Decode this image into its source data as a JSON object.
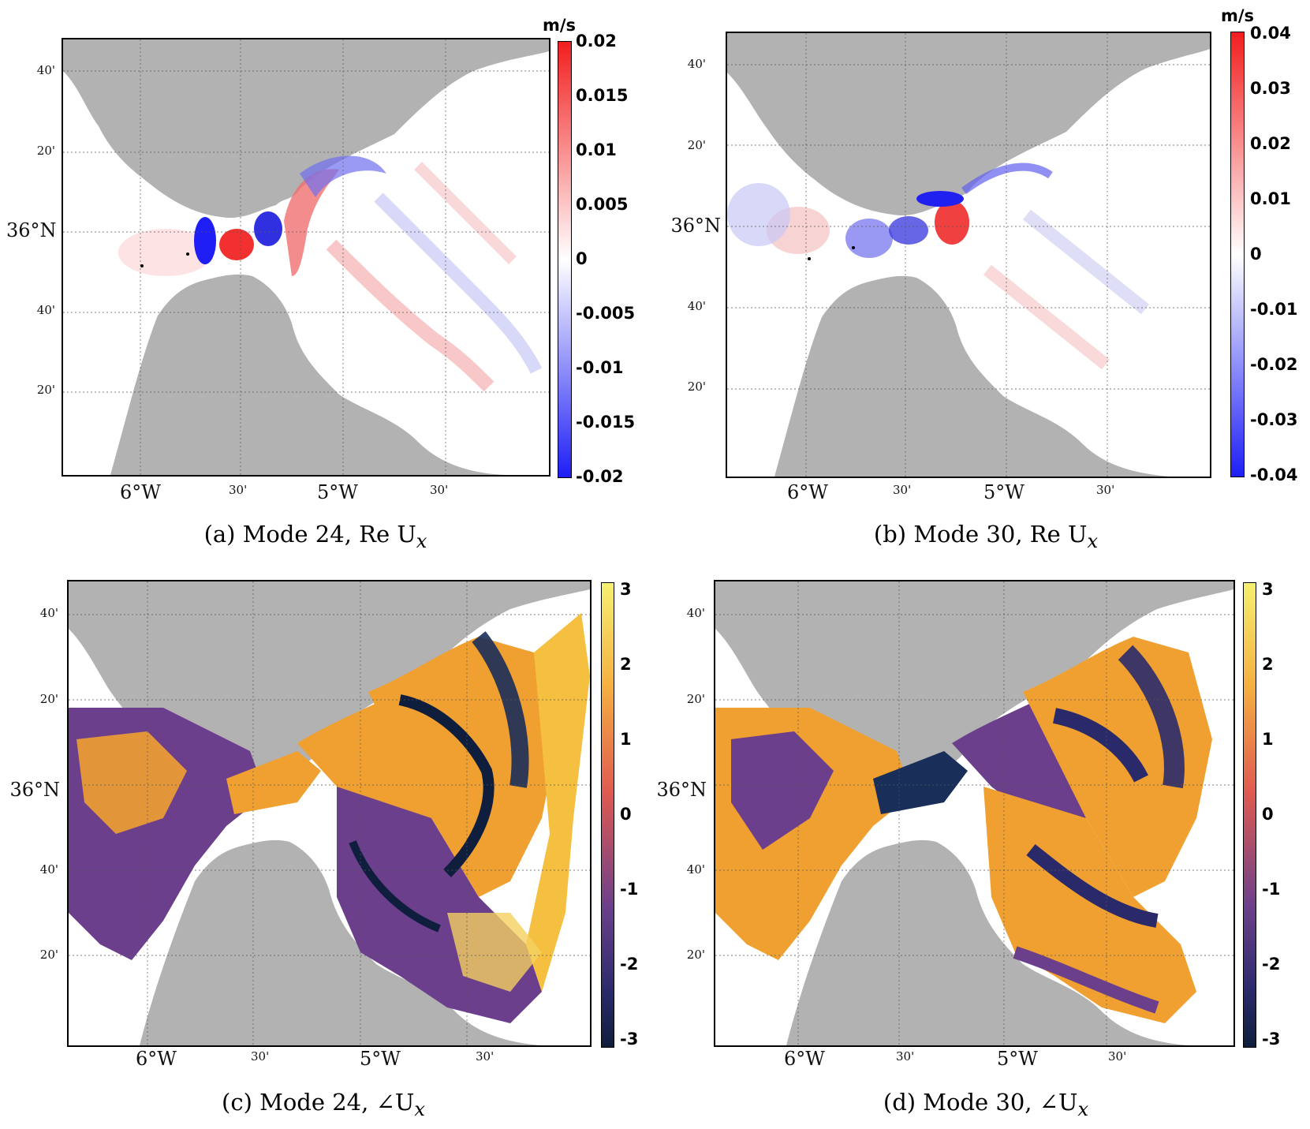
{
  "panels": [
    {
      "id": "a",
      "caption": "(a) Mode 24, Re U",
      "caption_sub": "x",
      "unit": "m/s",
      "colorbar": "diverging",
      "ticks": [
        "0.02",
        "0.015",
        "0.01",
        "0.005",
        "0",
        "-0.005",
        "-0.01",
        "-0.015",
        "-0.02"
      ]
    },
    {
      "id": "b",
      "caption": "(b) Mode 30, Re U",
      "caption_sub": "x",
      "unit": "m/s",
      "colorbar": "diverging",
      "ticks": [
        "0.04",
        "0.03",
        "0.02",
        "0.01",
        "0",
        "-0.01",
        "-0.02",
        "-0.03",
        "-0.04"
      ]
    },
    {
      "id": "c",
      "caption": "(c) Mode 24, ∠U",
      "caption_sub": "x",
      "unit": "",
      "colorbar": "phase",
      "ticks": [
        "3",
        "2",
        "1",
        "0",
        "-1",
        "-2",
        "-3"
      ]
    },
    {
      "id": "d",
      "caption": "(d) Mode 30, ∠U",
      "caption_sub": "x",
      "unit": "",
      "colorbar": "phase",
      "ticks": [
        "3",
        "2",
        "1",
        "0",
        "-1",
        "-2",
        "-3"
      ]
    }
  ],
  "lat_labels": [
    "40'",
    "20'",
    "36°N",
    "40'",
    "20'"
  ],
  "lon_labels": [
    "6°W",
    "30'",
    "5°W",
    "30'"
  ],
  "colors": {
    "land": "#b2b2b2",
    "sea": "#ffffff",
    "positive": "#f21e1e",
    "negative": "#1e1ef5",
    "phase_low": "#0f1e3c",
    "phase_mid": "#6b3f8c",
    "phase_high": "#f5f070",
    "phase_orange": "#f0a030"
  }
}
